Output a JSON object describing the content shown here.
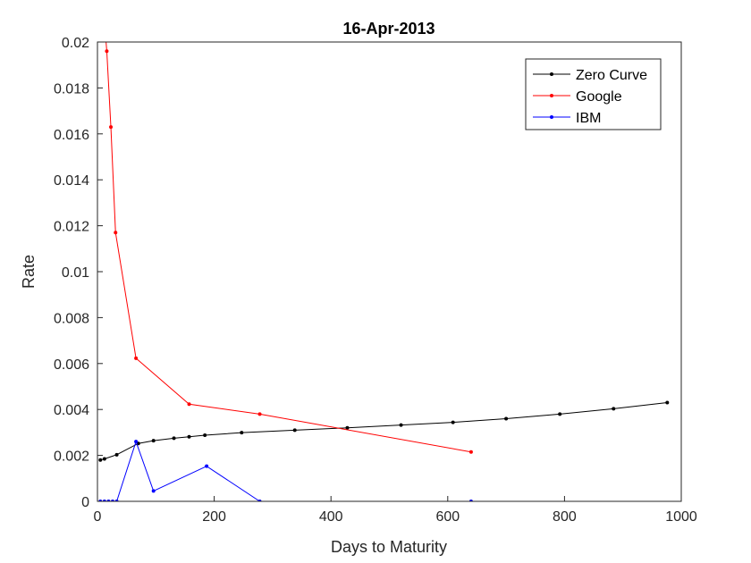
{
  "chart_data": {
    "type": "line",
    "title": "16-Apr-2013",
    "xlabel": "Days to Maturity",
    "ylabel": "Rate",
    "xlim": [
      0,
      1000
    ],
    "ylim": [
      0,
      0.02
    ],
    "xticks": [
      0,
      200,
      400,
      600,
      800,
      1000
    ],
    "xtick_labels": [
      "0",
      "200",
      "400",
      "600",
      "800",
      "1000"
    ],
    "yticks": [
      0,
      0.002,
      0.004,
      0.006,
      0.008,
      0.01,
      0.012,
      0.014,
      0.016,
      0.018,
      0.02
    ],
    "ytick_labels": [
      "0",
      "0.002",
      "0.004",
      "0.006",
      "0.008",
      "0.01",
      "0.012",
      "0.014",
      "0.016",
      "0.018",
      "0.02"
    ],
    "grid": false,
    "legend_position": "top-right",
    "series": [
      {
        "name": "Zero Curve",
        "color": "#000000",
        "x": [
          5,
          12,
          33,
          70,
          96,
          131,
          157,
          184,
          247,
          338,
          428,
          520,
          609,
          700,
          792,
          884,
          976
        ],
        "y": [
          0.0018,
          0.00185,
          0.00203,
          0.00252,
          0.00264,
          0.00275,
          0.00281,
          0.00288,
          0.00299,
          0.0031,
          0.0032,
          0.00332,
          0.00344,
          0.0036,
          0.0038,
          0.00403,
          0.0043
        ]
      },
      {
        "name": "Google",
        "color": "#ff0000",
        "x": [
          10,
          16,
          23,
          31,
          66,
          157,
          278,
          640
        ],
        "y": [
          0.0215,
          0.0196,
          0.0163,
          0.0117,
          0.00623,
          0.00423,
          0.0038,
          0.00215
        ]
      },
      {
        "name": "IBM",
        "color": "#0000ff",
        "x": [
          5,
          12,
          19,
          26,
          33,
          66,
          96,
          187,
          278,
          640
        ],
        "y": [
          0,
          0,
          0,
          0,
          0,
          0.0026,
          0.00045,
          0.00153,
          0,
          0
        ]
      }
    ]
  }
}
